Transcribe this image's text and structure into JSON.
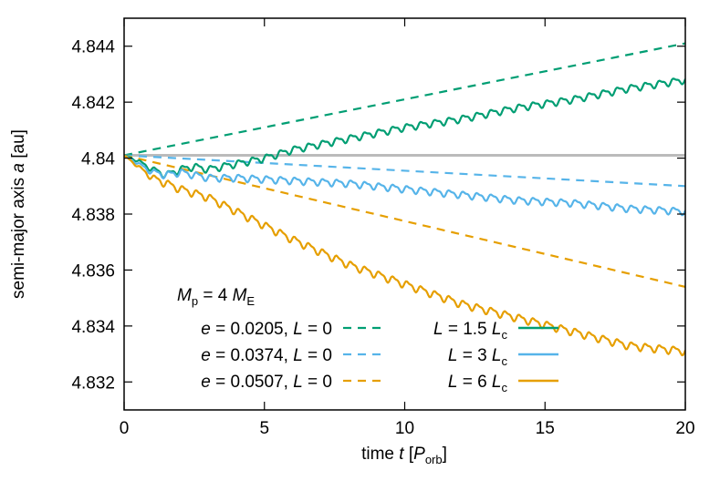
{
  "chart_data": {
    "type": "line",
    "xlabel": {
      "prefix": "time ",
      "var": "t",
      "open": " [",
      "sym": "P",
      "sub": "orb",
      "close": "]"
    },
    "ylabel": {
      "prefix": "semi-major axis ",
      "var": "a",
      "suffix": " [au]"
    },
    "xlim": [
      0,
      20
    ],
    "ylim": [
      4.831,
      4.845
    ],
    "xticks": [
      0,
      5,
      10,
      15,
      20
    ],
    "xtick_labels": [
      "0",
      "5",
      "10",
      "15",
      "20"
    ],
    "yticks": [
      4.832,
      4.834,
      4.836,
      4.838,
      4.84,
      4.842,
      4.844
    ],
    "ytick_labels": [
      "4.832",
      "4.834",
      "4.836",
      "4.838",
      "4.84",
      "4.842",
      "4.844"
    ],
    "annotation": {
      "var": "M",
      "sub": "p",
      "eq": " = 4 ",
      "var2": "M",
      "sub2": "E"
    },
    "reference_line": {
      "y": 4.8401,
      "color": "#bbbbbb"
    },
    "series": [
      {
        "name": "e = 0.0205, L = 0",
        "label": {
          "v1": "e",
          "t1": " = 0.0205, ",
          "v2": "L",
          "t2": " = 0"
        },
        "color": "#009e73",
        "dash": true,
        "x": [
          0,
          20
        ],
        "y": [
          4.8401,
          4.8441
        ]
      },
      {
        "name": "e = 0.0374, L = 0",
        "label": {
          "v1": "e",
          "t1": " = 0.0374, ",
          "v2": "L",
          "t2": " = 0"
        },
        "color": "#56b4e9",
        "dash": true,
        "x": [
          0,
          20
        ],
        "y": [
          4.8401,
          4.839
        ]
      },
      {
        "name": "e = 0.0507, L = 0",
        "label": {
          "v1": "e",
          "t1": " = 0.0507, ",
          "v2": "L",
          "t2": " = 0"
        },
        "color": "#e69f00",
        "dash": true,
        "x": [
          0,
          20
        ],
        "y": [
          4.8401,
          4.8354
        ]
      },
      {
        "name": "L = 1.5 Lc",
        "label": {
          "v1": "L",
          "t1": " = 1.5 ",
          "v2": "L",
          "sub": "c"
        },
        "color": "#009e73",
        "dash": false,
        "x": [
          0,
          0.5,
          1.0,
          1.5,
          2.0,
          2.5,
          3.0,
          3.5,
          4.0,
          5.0,
          6.0,
          8.0,
          10.0,
          12.0,
          14.0,
          16.0,
          18.0,
          20.0
        ],
        "y": [
          4.8401,
          4.8399,
          4.8396,
          4.8394,
          4.8396,
          4.8397,
          4.8396,
          4.8397,
          4.8398,
          4.84,
          4.8403,
          4.8407,
          4.8411,
          4.8414,
          4.8418,
          4.8421,
          4.8425,
          4.8428
        ],
        "osc_amp": 0.00018,
        "osc_period": 0.5
      },
      {
        "name": "L = 3 Lc",
        "label": {
          "v1": "L",
          "t1": " = 3 ",
          "v2": "L",
          "sub": "c"
        },
        "color": "#56b4e9",
        "dash": false,
        "x": [
          0,
          0.5,
          1.0,
          1.5,
          2.0,
          3.0,
          4.0,
          6.0,
          8.0,
          10.0,
          12.0,
          14.0,
          16.0,
          18.0,
          20.0
        ],
        "y": [
          4.8401,
          4.8398,
          4.8395,
          4.8394,
          4.8395,
          4.8393,
          4.8393,
          4.8392,
          4.8391,
          4.8389,
          4.8387,
          4.8385,
          4.8384,
          4.8382,
          4.8381
        ],
        "osc_amp": 0.00018,
        "osc_period": 0.5
      },
      {
        "name": "L = 6 Lc",
        "label": {
          "v1": "L",
          "t1": " = 6 ",
          "v2": "L",
          "sub": "c"
        },
        "color": "#e69f00",
        "dash": false,
        "x": [
          0,
          0.5,
          1.0,
          1.5,
          2.0,
          3.0,
          4.0,
          5.0,
          6.0,
          8.0,
          10.0,
          12.0,
          14.0,
          16.0,
          18.0,
          20.0
        ],
        "y": [
          4.8401,
          4.8397,
          4.8393,
          4.8391,
          4.8389,
          4.8386,
          4.8381,
          4.8376,
          4.8371,
          4.8362,
          4.8355,
          4.8348,
          4.8343,
          4.8338,
          4.8333,
          4.8331
        ],
        "osc_amp": 0.0002,
        "osc_period": 0.5
      }
    ]
  }
}
